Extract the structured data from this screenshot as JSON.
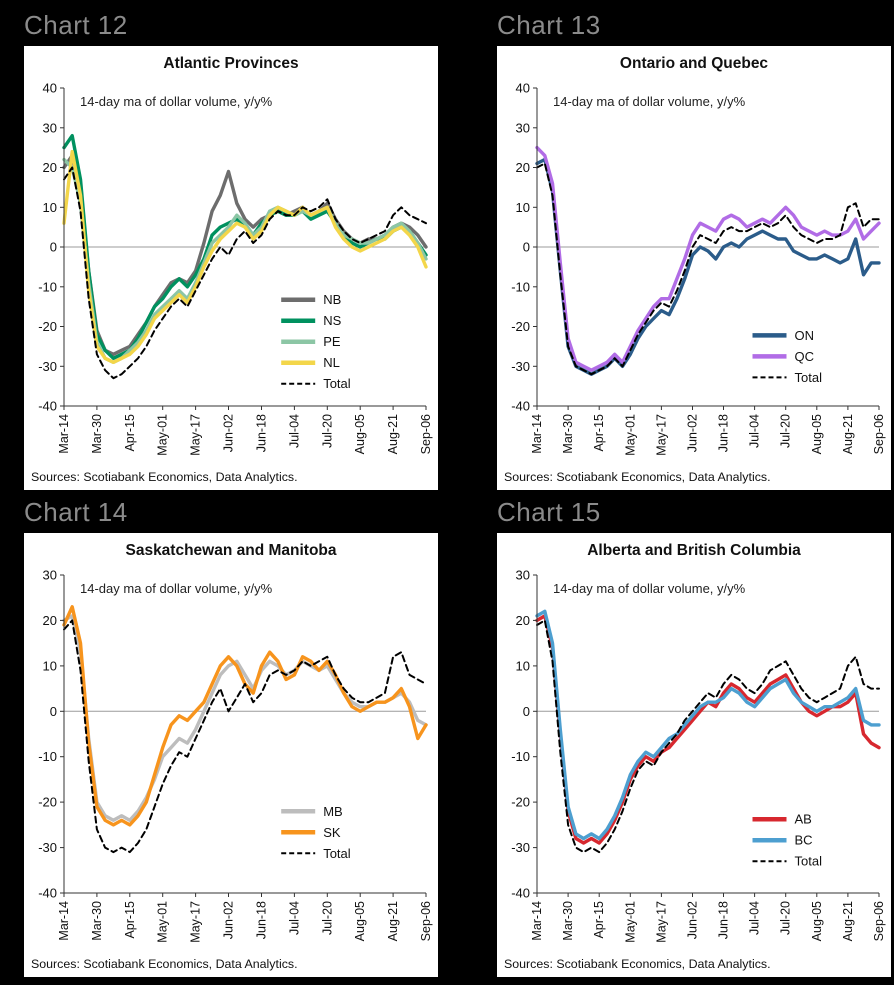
{
  "page": {
    "background": "#000000",
    "panel_background": "#ffffff",
    "header_color": "#8b8b8b"
  },
  "charts": [
    {
      "header": "Chart 12",
      "chart_data": {
        "type": "line",
        "title": "Atlantic Provinces",
        "subtitle": "14-day ma of dollar volume, y/y%",
        "sources": "Sources: Scotiabank Economics, Data Analytics.",
        "ylim": [
          -40,
          40
        ],
        "yticks": [
          40,
          30,
          20,
          10,
          0,
          -10,
          -20,
          -30,
          -40
        ],
        "x_tick_labels": [
          "Mar-14",
          "Mar-30",
          "Apr-15",
          "May-01",
          "May-17",
          "Jun-02",
          "Jun-18",
          "Jul-04",
          "Jul-20",
          "Aug-05",
          "Aug-21",
          "Sep-06"
        ],
        "grid": false,
        "legend_position": "lower right",
        "legend_layout": {
          "x": 0.6,
          "bottom": 0.93,
          "gap": 21
        },
        "series": [
          {
            "name": "NB",
            "color": "#6d6d6d",
            "dash": false,
            "values": [
              20,
              23,
              14,
              -6,
              -21,
              -26,
              -27,
              -26,
              -25,
              -22,
              -19,
              -15,
              -12,
              -9,
              -8,
              -9,
              -6,
              1,
              9,
              13,
              19,
              11,
              7,
              5,
              7,
              8,
              9,
              8,
              9,
              10,
              8,
              9,
              11,
              7,
              4,
              2,
              1,
              2,
              2,
              3,
              5,
              6,
              5,
              3,
              0
            ]
          },
          {
            "name": "NS",
            "color": "#00915f",
            "dash": false,
            "values": [
              25,
              28,
              17,
              -6,
              -22,
              -26,
              -28,
              -27,
              -26,
              -23,
              -19,
              -15,
              -13,
              -10,
              -8,
              -10,
              -7,
              -3,
              3,
              5,
              6,
              7,
              5,
              3,
              6,
              8,
              9,
              8,
              8,
              9,
              7,
              8,
              9,
              6,
              3,
              1,
              0,
              1,
              2,
              2,
              4,
              5,
              4,
              1,
              -2
            ]
          },
          {
            "name": "PE",
            "color": "#8cc6a5",
            "dash": false,
            "values": [
              22,
              20,
              11,
              -9,
              -24,
              -28,
              -29,
              -28,
              -26,
              -24,
              -21,
              -17,
              -15,
              -13,
              -11,
              -13,
              -9,
              -4,
              1,
              3,
              5,
              8,
              6,
              3,
              5,
              9,
              10,
              9,
              8,
              9,
              8,
              9,
              10,
              6,
              3,
              2,
              1,
              1,
              2,
              3,
              5,
              6,
              4,
              1,
              -3
            ]
          },
          {
            "name": "NL",
            "color": "#f3d64a",
            "dash": false,
            "values": [
              6,
              24,
              13,
              -11,
              -25,
              -28,
              -29,
              -28,
              -27,
              -25,
              -22,
              -18,
              -16,
              -14,
              -12,
              -14,
              -10,
              -5,
              -1,
              2,
              4,
              6,
              5,
              2,
              4,
              8,
              10,
              9,
              8,
              10,
              8,
              9,
              10,
              5,
              2,
              0,
              -1,
              0,
              1,
              2,
              4,
              5,
              3,
              0,
              -5
            ]
          },
          {
            "name": "Total",
            "color": "#000000",
            "dash": true,
            "values": [
              17,
              20,
              9,
              -13,
              -27,
              -31,
              -33,
              -32,
              -30,
              -28,
              -25,
              -21,
              -18,
              -15,
              -13,
              -15,
              -11,
              -7,
              -3,
              0,
              -2,
              2,
              4,
              1,
              3,
              7,
              9,
              8,
              8,
              10,
              9,
              10,
              12,
              7,
              4,
              2,
              1,
              2,
              3,
              4,
              8,
              10,
              8,
              7,
              6
            ]
          }
        ]
      }
    },
    {
      "header": "Chart 13",
      "chart_data": {
        "type": "line",
        "title": "Ontario and Quebec",
        "subtitle": "14-day ma of dollar volume, y/y%",
        "sources": "Sources: Scotiabank Economics, Data Analytics.",
        "ylim": [
          -40,
          40
        ],
        "yticks": [
          40,
          30,
          20,
          10,
          0,
          -10,
          -20,
          -30,
          -40
        ],
        "x_tick_labels": [
          "Mar-14",
          "Mar-30",
          "Apr-15",
          "May-01",
          "May-17",
          "Jun-02",
          "Jun-18",
          "Jul-04",
          "Jul-20",
          "Aug-05",
          "Aug-21",
          "Sep-06"
        ],
        "grid": false,
        "legend_position": "lower right",
        "legend_layout": {
          "x": 0.63,
          "bottom": 0.91,
          "gap": 21
        },
        "series": [
          {
            "name": "ON",
            "color": "#2b5c8a",
            "dash": false,
            "values": [
              21,
              22,
              14,
              -6,
              -25,
              -30,
              -31,
              -32,
              -31,
              -30,
              -28,
              -30,
              -27,
              -23,
              -20,
              -18,
              -16,
              -17,
              -13,
              -8,
              -2,
              0,
              -1,
              -3,
              0,
              1,
              0,
              2,
              3,
              4,
              3,
              2,
              2,
              -1,
              -2,
              -3,
              -3,
              -2,
              -3,
              -4,
              -3,
              2,
              -7,
              -4,
              -4
            ]
          },
          {
            "name": "QC",
            "color": "#b16ce6",
            "dash": false,
            "values": [
              25,
              23,
              16,
              -4,
              -23,
              -29,
              -30,
              -31,
              -30,
              -29,
              -27,
              -29,
              -25,
              -21,
              -18,
              -15,
              -13,
              -13,
              -8,
              -3,
              3,
              6,
              5,
              4,
              7,
              8,
              7,
              5,
              6,
              7,
              6,
              8,
              10,
              8,
              5,
              4,
              3,
              4,
              3,
              3,
              4,
              7,
              2,
              4,
              6
            ]
          },
          {
            "name": "Total",
            "color": "#000000",
            "dash": true,
            "values": [
              20,
              21,
              13,
              -7,
              -25,
              -30,
              -31,
              -32,
              -31,
              -30,
              -28,
              -30,
              -26,
              -22,
              -19,
              -16,
              -14,
              -15,
              -11,
              -6,
              0,
              3,
              2,
              1,
              4,
              5,
              4,
              4,
              5,
              6,
              5,
              6,
              8,
              5,
              3,
              2,
              1,
              2,
              2,
              3,
              10,
              11,
              5,
              7,
              7
            ]
          }
        ]
      }
    },
    {
      "header": "Chart 14",
      "chart_data": {
        "type": "line",
        "title": "Saskatchewan and Manitoba",
        "subtitle": "14-day ma of dollar volume, y/y%",
        "sources": "Sources: Scotiabank Economics, Data Analytics.",
        "ylim": [
          -40,
          30
        ],
        "yticks": [
          30,
          20,
          10,
          0,
          -10,
          -20,
          -30,
          -40
        ],
        "x_tick_labels": [
          "Mar-14",
          "Mar-30",
          "Apr-15",
          "May-01",
          "May-17",
          "Jun-02",
          "Jun-18",
          "Jul-04",
          "Jul-20",
          "Aug-05",
          "Aug-21",
          "Sep-06"
        ],
        "grid": false,
        "legend_position": "lower right",
        "legend_layout": {
          "x": 0.6,
          "bottom": 0.875,
          "gap": 21
        },
        "series": [
          {
            "name": "MB",
            "color": "#bdbdbd",
            "dash": false,
            "values": [
              20,
              21,
              13,
              -6,
              -20,
              -23,
              -24,
              -23,
              -24,
              -22,
              -19,
              -15,
              -10,
              -8,
              -6,
              -7,
              -4,
              0,
              4,
              8,
              10,
              11,
              8,
              5,
              9,
              11,
              10,
              8,
              9,
              11,
              10,
              9,
              10,
              7,
              4,
              2,
              1,
              1,
              2,
              2,
              3,
              4,
              2,
              -2,
              -3
            ]
          },
          {
            "name": "SK",
            "color": "#f7941d",
            "dash": false,
            "values": [
              19,
              23,
              15,
              -7,
              -21,
              -24,
              -25,
              -24,
              -25,
              -23,
              -20,
              -14,
              -8,
              -3,
              -1,
              -2,
              0,
              2,
              6,
              10,
              12,
              10,
              6,
              4,
              10,
              13,
              11,
              7,
              8,
              12,
              11,
              9,
              11,
              8,
              4,
              1,
              0,
              1,
              2,
              2,
              3,
              5,
              1,
              -6,
              -3
            ]
          },
          {
            "name": "Total",
            "color": "#000000",
            "dash": true,
            "values": [
              18,
              20,
              9,
              -11,
              -26,
              -30,
              -31,
              -30,
              -31,
              -29,
              -26,
              -21,
              -16,
              -12,
              -9,
              -10,
              -6,
              -2,
              2,
              5,
              0,
              3,
              6,
              2,
              4,
              8,
              9,
              8,
              9,
              11,
              10,
              11,
              12,
              8,
              5,
              3,
              2,
              2,
              3,
              4,
              12,
              13,
              8,
              7,
              6
            ]
          }
        ]
      }
    },
    {
      "header": "Chart 15",
      "chart_data": {
        "type": "line",
        "title": "Alberta and British Columbia",
        "subtitle": "14-day ma of dollar volume, y/y%",
        "sources": "Sources: Scotiabank Economics, Data Analytics.",
        "ylim": [
          -40,
          30
        ],
        "yticks": [
          30,
          20,
          10,
          0,
          -10,
          -20,
          -30,
          -40
        ],
        "x_tick_labels": [
          "Mar-14",
          "Mar-30",
          "Apr-15",
          "May-01",
          "May-17",
          "Jun-02",
          "Jun-18",
          "Jul-04",
          "Jul-20",
          "Aug-05",
          "Aug-21",
          "Sep-06"
        ],
        "grid": false,
        "legend_position": "lower right",
        "legend_layout": {
          "x": 0.63,
          "bottom": 0.9,
          "gap": 21
        },
        "series": [
          {
            "name": "AB",
            "color": "#d7282f",
            "dash": false,
            "values": [
              20,
              21,
              14,
              -5,
              -22,
              -28,
              -29,
              -28,
              -29,
              -27,
              -24,
              -20,
              -15,
              -12,
              -10,
              -11,
              -9,
              -8,
              -6,
              -4,
              -2,
              0,
              2,
              1,
              4,
              6,
              5,
              3,
              2,
              4,
              6,
              7,
              8,
              5,
              2,
              0,
              -1,
              0,
              1,
              1,
              2,
              4,
              -5,
              -7,
              -8
            ]
          },
          {
            "name": "BC",
            "color": "#4d9fd0",
            "dash": false,
            "values": [
              21,
              22,
              15,
              -4,
              -21,
              -27,
              -28,
              -27,
              -28,
              -26,
              -23,
              -19,
              -14,
              -11,
              -9,
              -10,
              -8,
              -6,
              -5,
              -3,
              -1,
              1,
              2,
              2,
              3,
              5,
              4,
              2,
              1,
              3,
              5,
              6,
              7,
              4,
              2,
              1,
              0,
              1,
              1,
              2,
              3,
              5,
              -2,
              -3,
              -3
            ]
          },
          {
            "name": "Total",
            "color": "#000000",
            "dash": true,
            "values": [
              19,
              20,
              11,
              -9,
              -25,
              -30,
              -31,
              -30,
              -31,
              -29,
              -26,
              -22,
              -17,
              -13,
              -11,
              -12,
              -9,
              -7,
              -5,
              -2,
              0,
              2,
              4,
              3,
              6,
              8,
              7,
              5,
              4,
              6,
              9,
              10,
              11,
              8,
              5,
              3,
              2,
              3,
              4,
              5,
              10,
              12,
              6,
              5,
              5
            ]
          }
        ]
      }
    }
  ]
}
